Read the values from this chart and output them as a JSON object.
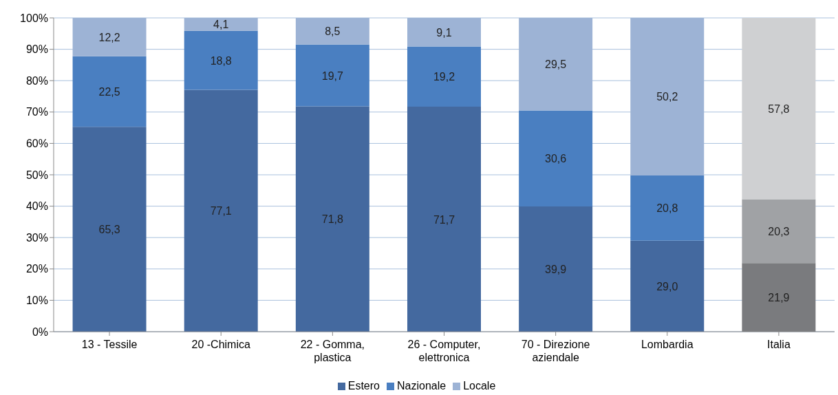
{
  "chart_data": {
    "type": "bar",
    "stacked": true,
    "categories": [
      "13 - Tessile",
      "20 -Chimica",
      "22 - Gomma, plastica",
      "26 - Computer, elettronica",
      "70 - Direzione aziendale",
      "Lombardia",
      "Italia"
    ],
    "series": [
      {
        "name": "Estero",
        "color": "#44699f",
        "colors": [
          "#44699f",
          "#44699f",
          "#44699f",
          "#44699f",
          "#44699f",
          "#44699f",
          "#7a7b7e"
        ],
        "values": [
          65.3,
          77.1,
          71.8,
          71.7,
          39.9,
          29.0,
          21.9
        ],
        "value_labels": [
          "65,3",
          "77,1",
          "71,8",
          "71,7",
          "39,9",
          "29,0",
          "21,9"
        ]
      },
      {
        "name": "Nazionale",
        "color": "#4a7fc1",
        "colors": [
          "#4a7fc1",
          "#4a7fc1",
          "#4a7fc1",
          "#4a7fc1",
          "#4a7fc1",
          "#4a7fc1",
          "#a0a2a5"
        ],
        "values": [
          22.5,
          18.8,
          19.7,
          19.2,
          30.6,
          20.8,
          20.3
        ],
        "value_labels": [
          "22,5",
          "18,8",
          "19,7",
          "19,2",
          "30,6",
          "20,8",
          "20,3"
        ]
      },
      {
        "name": "Locale",
        "color": "#9db3d5",
        "colors": [
          "#9db3d5",
          "#9db3d5",
          "#9db3d5",
          "#9db3d5",
          "#9db3d5",
          "#9db3d5",
          "#cfd0d2"
        ],
        "values": [
          12.2,
          4.1,
          8.5,
          9.1,
          29.5,
          50.2,
          57.8
        ],
        "value_labels": [
          "12,2",
          "4,1",
          "8,5",
          "9,1",
          "29,5",
          "50,2",
          "57,8"
        ]
      }
    ],
    "ylim": [
      0,
      100
    ],
    "yticks": [
      {
        "value": 0,
        "label": "0%"
      },
      {
        "value": 10,
        "label": "10%"
      },
      {
        "value": 20,
        "label": "20%"
      },
      {
        "value": 30,
        "label": "30%"
      },
      {
        "value": 40,
        "label": "40%"
      },
      {
        "value": 50,
        "label": "50%"
      },
      {
        "value": 60,
        "label": "60%"
      },
      {
        "value": 70,
        "label": "70%"
      },
      {
        "value": 80,
        "label": "80%"
      },
      {
        "value": 90,
        "label": "90%"
      },
      {
        "value": 100,
        "label": "100%"
      }
    ],
    "grid": "y",
    "legend": "bottom"
  }
}
